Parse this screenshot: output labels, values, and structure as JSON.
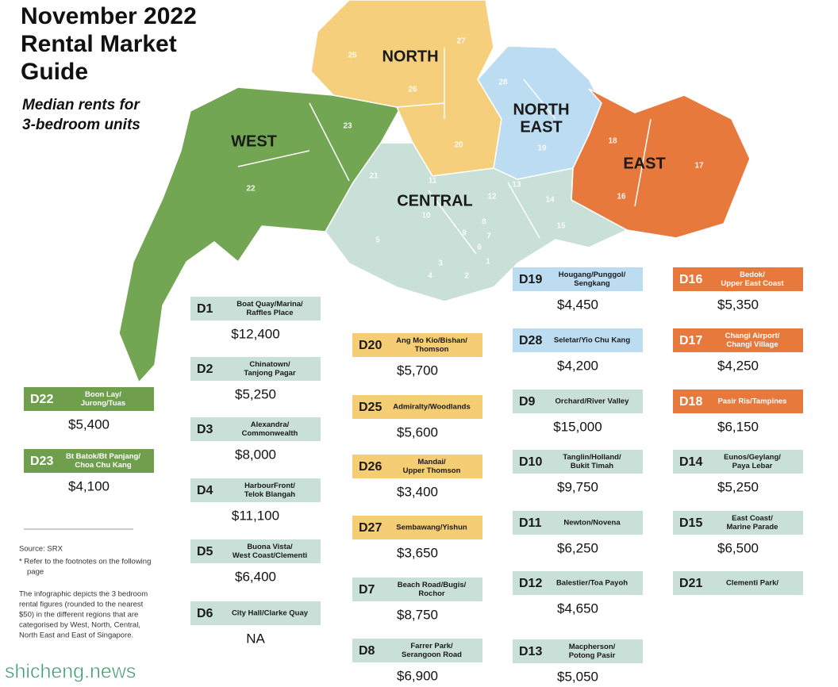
{
  "header": {
    "title": [
      "November 2022",
      "Rental Market",
      "Guide"
    ],
    "subtitle": [
      "Median rents for",
      "3-bedroom units"
    ]
  },
  "map": {
    "regions": [
      "WEST",
      "NORTH",
      "NORTH",
      "EAST",
      "EAST",
      "CENTRAL"
    ],
    "district_numbers": [
      "25",
      "27",
      "26",
      "20",
      "28",
      "19",
      "18",
      "17",
      "16",
      "23",
      "22",
      "21",
      "11",
      "12",
      "13",
      "14",
      "15",
      "10",
      "5",
      "9",
      "8",
      "7",
      "3",
      "4",
      "2",
      "1",
      "6"
    ]
  },
  "districts": [
    {
      "code": "D22",
      "name": [
        "Boon Lay/",
        "Jurong/Tuas"
      ],
      "rent": "$5,400",
      "color": "#6f9f4c",
      "label_color": "#ffffff"
    },
    {
      "code": "D23",
      "name": [
        "Bt Batok/Bt Panjang/",
        "Choa Chu Kang"
      ],
      "rent": "$4,100",
      "color": "#6f9f4c",
      "label_color": "#ffffff"
    },
    {
      "code": "D1",
      "name": [
        "Boat Quay/Marina/",
        "Raffles Place"
      ],
      "rent": "$12,400",
      "color": "#c8e0d7",
      "label_color": "#1a1a1a"
    },
    {
      "code": "D2",
      "name": [
        "Chinatown/",
        "Tanjong Pagar"
      ],
      "rent": "$5,250",
      "color": "#c8e0d7",
      "label_color": "#1a1a1a"
    },
    {
      "code": "D3",
      "name": [
        "Alexandra/",
        "Commonwealth"
      ],
      "rent": "$8,000",
      "color": "#c8e0d7",
      "label_color": "#1a1a1a"
    },
    {
      "code": "D4",
      "name": [
        "HarbourFront/",
        "Telok Blangah"
      ],
      "rent": "$11,100",
      "color": "#c8e0d7",
      "label_color": "#1a1a1a"
    },
    {
      "code": "D5",
      "name": [
        "Buona Vista/",
        "West Coast/Clementi"
      ],
      "rent": "$6,400",
      "color": "#c8e0d7",
      "label_color": "#1a1a1a"
    },
    {
      "code": "D6",
      "name": [
        "City Hall/Clarke Quay"
      ],
      "rent": "NA",
      "color": "#c8e0d7",
      "label_color": "#1a1a1a"
    },
    {
      "code": "D20",
      "name": [
        "Ang Mo Kio/Bishan/",
        "Thomson"
      ],
      "rent": "$5,700",
      "color": "#f4cd74",
      "label_color": "#1a1a1a"
    },
    {
      "code": "D25",
      "name": [
        "Admiralty/Woodlands"
      ],
      "rent": "$5,600",
      "color": "#f4cd74",
      "label_color": "#1a1a1a"
    },
    {
      "code": "D26",
      "name": [
        "Mandai/",
        "Upper Thomson"
      ],
      "rent": "$3,400",
      "color": "#f4cd74",
      "label_color": "#1a1a1a"
    },
    {
      "code": "D27",
      "name": [
        "Sembawang/Yishun"
      ],
      "rent": "$3,650",
      "color": "#f4cd74",
      "label_color": "#1a1a1a"
    },
    {
      "code": "D7",
      "name": [
        "Beach Road/Bugis/",
        "Rochor"
      ],
      "rent": "$8,750",
      "color": "#c8e0d7",
      "label_color": "#1a1a1a"
    },
    {
      "code": "D8",
      "name": [
        "Farrer Park/",
        "Serangoon Road"
      ],
      "rent": "$6,900",
      "color": "#c8e0d7",
      "label_color": "#1a1a1a"
    },
    {
      "code": "D19",
      "name": [
        "Hougang/Punggol/",
        "Sengkang"
      ],
      "rent": "$4,450",
      "color": "#bcdcf2",
      "label_color": "#1a1a1a"
    },
    {
      "code": "D28",
      "name": [
        "Seletar/Yio Chu Kang"
      ],
      "rent": "$4,200",
      "color": "#bcdcf2",
      "label_color": "#1a1a1a"
    },
    {
      "code": "D9",
      "name": [
        "Orchard/River Valley"
      ],
      "rent": "$15,000",
      "color": "#c8e0d7",
      "label_color": "#1a1a1a"
    },
    {
      "code": "D10",
      "name": [
        "Tanglin/Holland/",
        "Bukit Timah"
      ],
      "rent": "$9,750",
      "color": "#c8e0d7",
      "label_color": "#1a1a1a"
    },
    {
      "code": "D11",
      "name": [
        "Newton/Novena"
      ],
      "rent": "$6,250",
      "color": "#c8e0d7",
      "label_color": "#1a1a1a"
    },
    {
      "code": "D12",
      "name": [
        "Balestier/Toa Payoh"
      ],
      "rent": "$4,650",
      "color": "#c8e0d7",
      "label_color": "#1a1a1a"
    },
    {
      "code": "D13",
      "name": [
        "Macpherson/",
        "Potong Pasir"
      ],
      "rent": "$5,050",
      "color": "#c8e0d7",
      "label_color": "#1a1a1a"
    },
    {
      "code": "D16",
      "name": [
        "Bedok/",
        "Upper East Coast"
      ],
      "rent": "$5,350",
      "color": "#e8793d",
      "label_color": "#ffffff"
    },
    {
      "code": "D17",
      "name": [
        "Changi Airport/",
        "Changi Village"
      ],
      "rent": "$4,250",
      "color": "#e8793d",
      "label_color": "#ffffff"
    },
    {
      "code": "D18",
      "name": [
        "Pasir Ris/Tampines"
      ],
      "rent": "$6,150",
      "color": "#e8793d",
      "label_color": "#ffffff"
    },
    {
      "code": "D14",
      "name": [
        "Eunos/Geylang/",
        "Paya Lebar"
      ],
      "rent": "$5,250",
      "color": "#c8e0d7",
      "label_color": "#1a1a1a"
    },
    {
      "code": "D15",
      "name": [
        "East Coast/",
        "Marine Parade"
      ],
      "rent": "$6,500",
      "color": "#c8e0d7",
      "label_color": "#1a1a1a"
    },
    {
      "code": "D21",
      "name": [
        "Clementi Park/"
      ],
      "color": "#c8e0d7",
      "label_color": "#1a1a1a"
    }
  ],
  "notes": {
    "source": "Source: SRX",
    "footnote": [
      "* Refer to the footnotes on the following",
      "page"
    ],
    "description": [
      "The infographic depicts the 3 bedroom",
      "rental figures (rounded to the nearest",
      "$50) in the different regions that are",
      "categorised by West, North, Central,",
      "North East and East of Singapore."
    ]
  },
  "watermark": "shicheng.news"
}
